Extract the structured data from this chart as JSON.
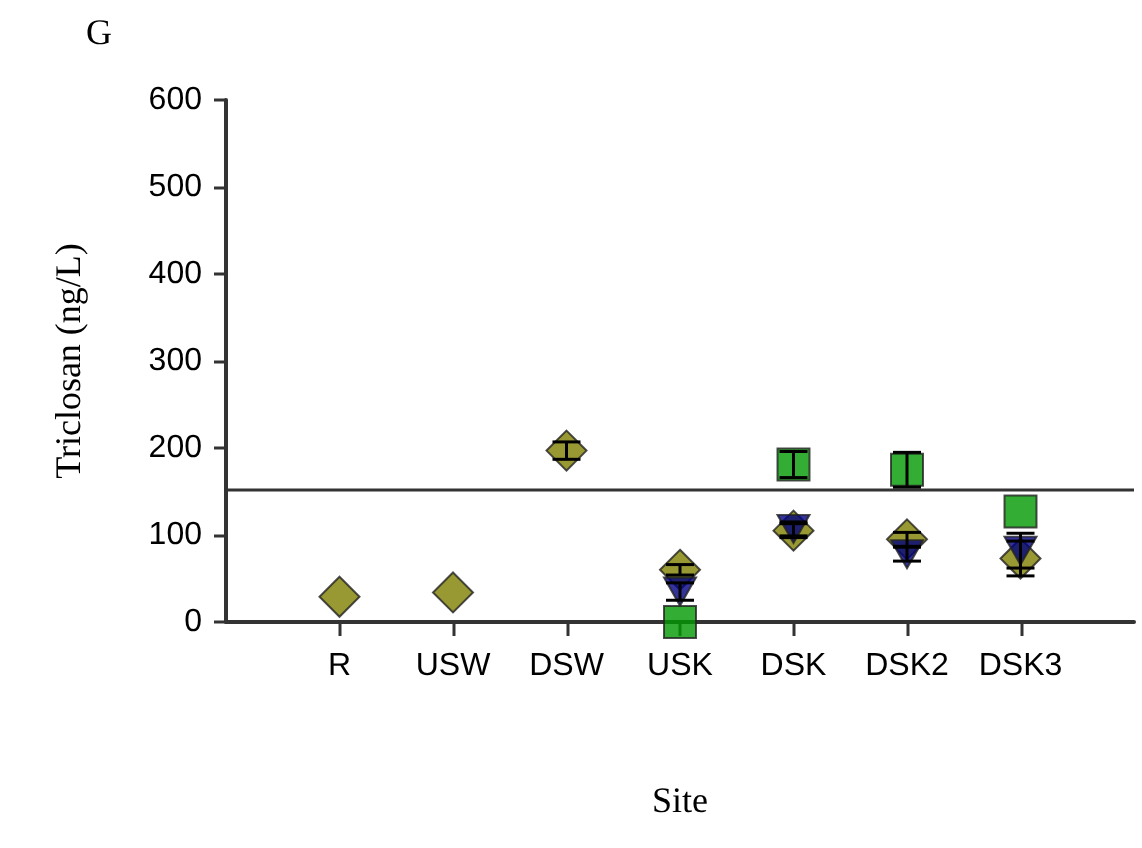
{
  "chart_data": {
    "type": "scatter",
    "title": "G",
    "xlabel": "Site",
    "ylabel": "Triclosan (ng/L)",
    "categories": [
      "R",
      "USW",
      "DSW",
      "USK",
      "DSK",
      "DSK2",
      "DSK3"
    ],
    "ylim": [
      0,
      600
    ],
    "yticks": [
      0,
      100,
      200,
      300,
      400,
      500,
      600
    ],
    "grid": false,
    "series": [
      {
        "color": "#808000",
        "marker": "diamond",
        "values": [
          29,
          34,
          197,
          60,
          105,
          95,
          73
        ],
        "errors": [
          null,
          null,
          10,
          6,
          8,
          8,
          20
        ]
      },
      {
        "color": "#000080",
        "marker": "triangle",
        "values": [
          null,
          null,
          null,
          35,
          107,
          78,
          82
        ],
        "errors": [
          null,
          null,
          null,
          10,
          8,
          8,
          20
        ]
      },
      {
        "color": "#009900",
        "marker": "square",
        "values": [
          null,
          null,
          null,
          0,
          181,
          175,
          127
        ],
        "errors": [
          null,
          null,
          null,
          null,
          15,
          20,
          null
        ]
      }
    ],
    "ref_lines": [
      {
        "axis": "y",
        "value": 152,
        "color": "#333333"
      }
    ]
  }
}
